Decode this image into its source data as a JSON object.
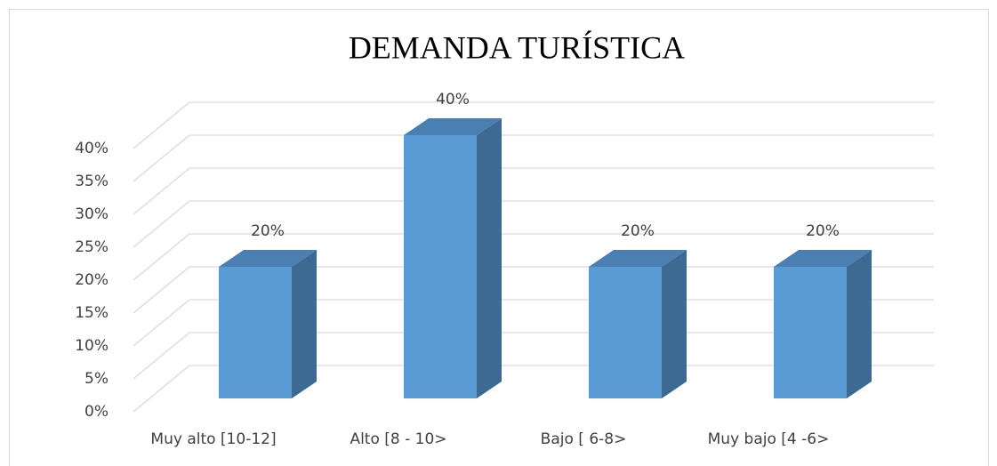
{
  "chart_data": {
    "type": "bar3d",
    "title": "DEMANDA TURÍSTICA",
    "categories": [
      "Muy alto [10-12]",
      "Alto [8 - 10>",
      "Bajo [ 6-8>",
      "Muy bajo [4 -6>"
    ],
    "values": [
      20,
      40,
      20,
      20
    ],
    "value_labels": [
      "20%",
      "40%",
      "20%",
      "20%"
    ],
    "color": "#5b9bd5",
    "ylim": [
      0,
      40
    ],
    "yticks": [
      {
        "value": 0,
        "label": "0%"
      },
      {
        "value": 5,
        "label": "5%"
      },
      {
        "value": 10,
        "label": "10%"
      },
      {
        "value": 15,
        "label": "15%"
      },
      {
        "value": 20,
        "label": "20%"
      },
      {
        "value": 25,
        "label": "25%"
      },
      {
        "value": 30,
        "label": "30%"
      },
      {
        "value": 35,
        "label": "35%"
      },
      {
        "value": 40,
        "label": "40%"
      }
    ],
    "grid": true
  }
}
